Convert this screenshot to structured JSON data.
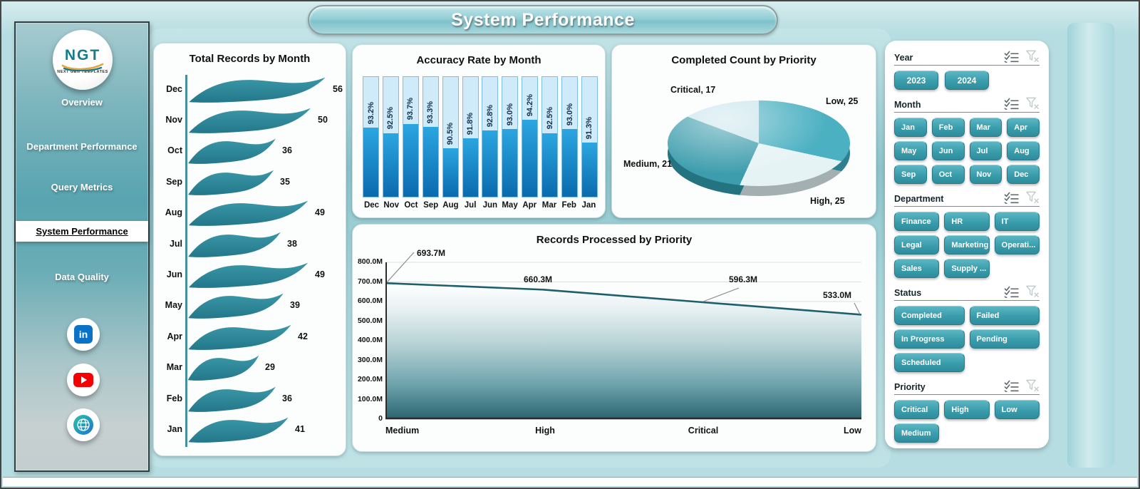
{
  "header": {
    "title": "System Performance"
  },
  "sidebar": {
    "logo": {
      "text": "NGT",
      "caption": "NEXT GEN TEMPLATES"
    },
    "items": [
      {
        "label": "Overview",
        "active": false
      },
      {
        "label": "Department Performance",
        "active": false
      },
      {
        "label": "Query Metrics",
        "active": false
      },
      {
        "label": "System Performance",
        "active": true
      },
      {
        "label": "Data Quality",
        "active": false
      }
    ],
    "social": [
      {
        "name": "linkedin-icon"
      },
      {
        "name": "youtube-icon"
      },
      {
        "name": "website-globe-icon"
      }
    ]
  },
  "colors": {
    "accent_teal": "#3a9dac",
    "wave_teal": "#2f8fa0",
    "bar_blue": "#1a92d0",
    "bar_track": "#cfeaf8",
    "area_dark": "#27616d",
    "line_teal": "#1d5f6c"
  },
  "chart_data": [
    {
      "type": "bar",
      "variant": "horizontal-wave",
      "title": "Total Records by Month",
      "categories": [
        "Dec",
        "Nov",
        "Oct",
        "Sep",
        "Aug",
        "Jul",
        "Jun",
        "May",
        "Apr",
        "Mar",
        "Feb",
        "Jan"
      ],
      "values": [
        56,
        50,
        36,
        35,
        49,
        38,
        49,
        39,
        42,
        29,
        36,
        41
      ],
      "xlim": [
        0,
        56
      ]
    },
    {
      "type": "bar",
      "variant": "vertical-with-track",
      "title": "Accuracy Rate by Month",
      "categories": [
        "Dec",
        "Nov",
        "Oct",
        "Sep",
        "Aug",
        "Jul",
        "Jun",
        "May",
        "Apr",
        "Mar",
        "Feb",
        "Jan"
      ],
      "values": [
        93.2,
        92.5,
        93.7,
        93.3,
        90.5,
        91.8,
        92.8,
        93.0,
        94.2,
        92.5,
        93.0,
        91.3
      ],
      "unit": "%"
    },
    {
      "type": "pie",
      "title": "Completed Count by Priority",
      "slices": [
        {
          "label": "Low",
          "value": 25,
          "label_text": "Low, 25",
          "color": "#4bb0c1"
        },
        {
          "label": "High",
          "value": 25,
          "label_text": "High, 25",
          "color": "#e6f3f5"
        },
        {
          "label": "Medium",
          "value": 21,
          "label_text": "Medium, 21",
          "color": "#3e9dad"
        },
        {
          "label": "Critical",
          "value": 17,
          "label_text": "Critical, 17",
          "color": "#c8e4ec"
        }
      ]
    },
    {
      "type": "area",
      "title": "Records Processed by Priority",
      "categories": [
        "Medium",
        "High",
        "Critical",
        "Low"
      ],
      "values_millions": [
        693.7,
        660.3,
        596.3,
        533.0
      ],
      "point_labels": [
        "693.7M",
        "660.3M",
        "596.3M",
        "533.0M"
      ],
      "ylim": [
        0,
        800
      ],
      "yticks": [
        "800.0M",
        "700.0M",
        "600.0M",
        "500.0M",
        "400.0M",
        "300.0M",
        "200.0M",
        "100.0M",
        "0"
      ],
      "grid": true
    }
  ],
  "filter_panel": {
    "icons": {
      "select_all": "select-all-icon",
      "clear": "clear-filter-icon"
    },
    "sections": [
      {
        "title": "Year",
        "layout": "cols-year",
        "items": [
          "2023",
          "2024"
        ]
      },
      {
        "title": "Month",
        "layout": "cols-4",
        "items": [
          "Jan",
          "Feb",
          "Mar",
          "Apr",
          "May",
          "Jun",
          "Jul",
          "Aug",
          "Sep",
          "Oct",
          "Nov",
          "Dec"
        ]
      },
      {
        "title": "Department",
        "layout": "cols-3",
        "items": [
          "Finance",
          "HR",
          "IT",
          "Legal",
          "Marketing",
          "Operati...",
          "Sales",
          "Supply ..."
        ]
      },
      {
        "title": "Status",
        "layout": "cols-2",
        "items": [
          "Completed",
          "Failed",
          "In Progress",
          "Pending",
          "Scheduled"
        ]
      },
      {
        "title": "Priority",
        "layout": "cols-3",
        "items": [
          "Critical",
          "High",
          "Low",
          "Medium"
        ]
      }
    ]
  }
}
